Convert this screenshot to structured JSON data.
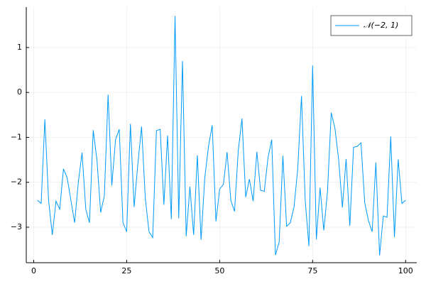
{
  "chart_data": {
    "type": "line",
    "x": [
      1,
      2,
      3,
      4,
      5,
      6,
      7,
      8,
      9,
      10,
      11,
      12,
      13,
      14,
      15,
      16,
      17,
      18,
      19,
      20,
      21,
      22,
      23,
      24,
      25,
      26,
      27,
      28,
      29,
      30,
      31,
      32,
      33,
      34,
      35,
      36,
      37,
      38,
      39,
      40,
      41,
      42,
      43,
      44,
      45,
      46,
      47,
      48,
      49,
      50,
      51,
      52,
      53,
      54,
      55,
      56,
      57,
      58,
      59,
      60,
      61,
      62,
      63,
      64,
      65,
      66,
      67,
      68,
      69,
      70,
      71,
      72,
      73,
      74,
      75,
      76,
      77,
      78,
      79,
      80,
      81,
      82,
      83,
      84,
      85,
      86,
      87,
      88,
      89,
      90,
      91,
      92,
      93,
      94,
      95,
      96,
      97,
      98,
      99,
      100
    ],
    "series": [
      {
        "name": "𝒩(−2, 1)",
        "color": "#009af9",
        "values": [
          -2.4,
          -2.47,
          -0.6,
          -2.4,
          -3.17,
          -2.42,
          -2.6,
          -1.7,
          -1.9,
          -2.4,
          -2.9,
          -2.0,
          -1.34,
          -2.6,
          -2.9,
          -0.84,
          -1.5,
          -2.67,
          -2.3,
          -0.05,
          -2.07,
          -1.05,
          -0.82,
          -2.9,
          -3.1,
          -0.7,
          -2.55,
          -1.6,
          -0.76,
          -2.35,
          -3.1,
          -3.23,
          -0.85,
          -0.82,
          -2.5,
          -0.96,
          -2.82,
          1.7,
          -2.8,
          0.7,
          -3.2,
          -2.1,
          -3.17,
          -1.4,
          -3.28,
          -1.9,
          -1.2,
          -0.73,
          -2.87,
          -2.15,
          -2.05,
          -1.33,
          -2.4,
          -2.65,
          -1.3,
          -0.58,
          -2.33,
          -1.93,
          -2.42,
          -1.32,
          -2.18,
          -2.2,
          -1.45,
          -1.05,
          -3.62,
          -3.33,
          -1.41,
          -2.98,
          -2.9,
          -2.55,
          -1.7,
          -0.08,
          -2.4,
          -3.42,
          0.6,
          -3.27,
          -2.12,
          -3.07,
          -2.2,
          -0.45,
          -0.8,
          -1.5,
          -2.56,
          -1.48,
          -2.97,
          -1.22,
          -1.2,
          -1.12,
          -2.45,
          -2.85,
          -3.1,
          -1.56,
          -3.63,
          -2.75,
          -2.78,
          -0.98,
          -3.22,
          -1.49,
          -2.47,
          -2.4
        ]
      }
    ],
    "xlim": [
      -2,
      103
    ],
    "xticks": [
      0,
      25,
      50,
      75,
      100
    ],
    "ylim": [
      -3.79,
      1.9
    ],
    "yticks": [
      {
        "value": -3,
        "label": "−3"
      },
      {
        "value": -2,
        "label": "−2"
      },
      {
        "value": -1,
        "label": "−1"
      },
      0,
      1
    ],
    "grid": true,
    "legend": "top-right"
  }
}
